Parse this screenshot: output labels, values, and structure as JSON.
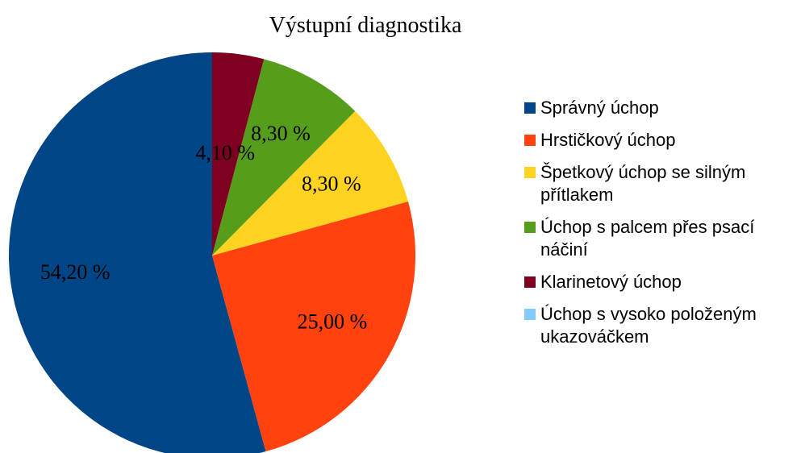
{
  "chart_data": {
    "type": "pie",
    "title": "Výstupní diagnostika",
    "categories": [
      "Správný úchop",
      "Hrstičkový úchop",
      "Špetkový úchop se silným přítlakem",
      "Úchop s palcem přes psací náčiní",
      "Klarinetový úchop",
      "Úchop s vysoko položeným ukazováčkem"
    ],
    "values": [
      54.2,
      25.0,
      8.3,
      8.3,
      4.1,
      0
    ],
    "value_labels": [
      "54,20 %",
      "25,00 %",
      "8,30 %",
      "8,30 %",
      "4,10 %",
      null
    ],
    "colors": [
      "#004586",
      "#ff420e",
      "#ffd320",
      "#579d1c",
      "#7e0021",
      "#83caff"
    ],
    "legend": "right"
  }
}
